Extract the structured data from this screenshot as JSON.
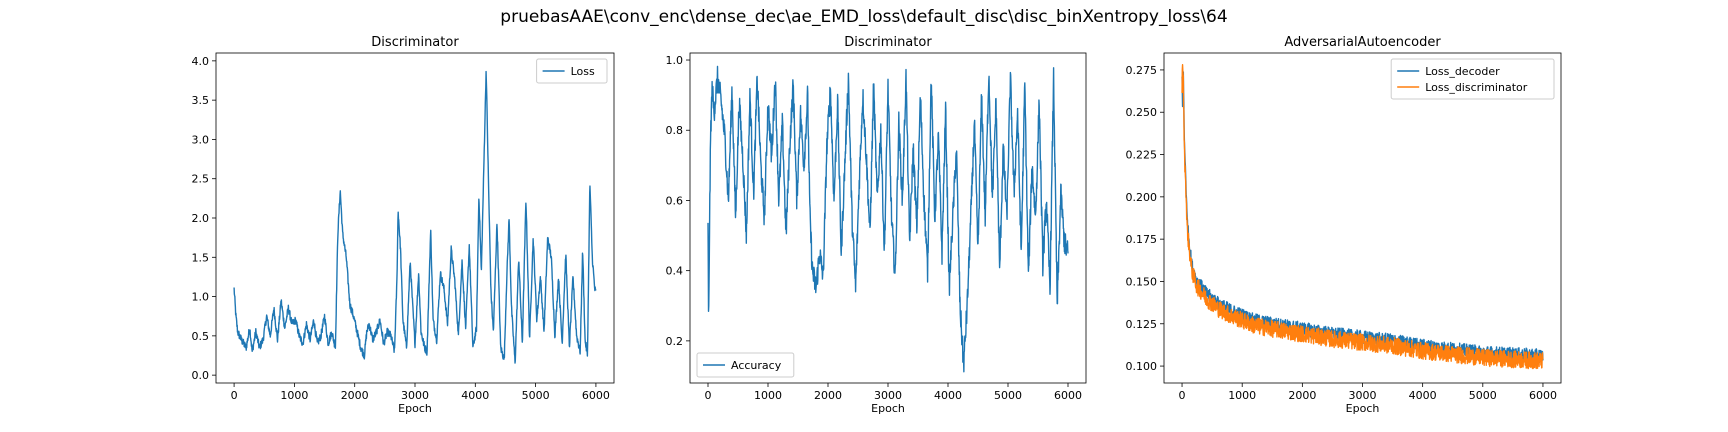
{
  "suptitle": "pruebasAAE\\conv_enc\\dense_dec\\ae_EMD_loss\\default_disc\\disc_binXentropy_loss\\64",
  "chart_data": [
    {
      "type": "line",
      "title": "Discriminator",
      "xlabel": "Epoch",
      "ylabel": "",
      "xlim": [
        -300,
        6300
      ],
      "ylim": [
        -0.1,
        4.1
      ],
      "xticks": [
        0,
        1000,
        2000,
        3000,
        4000,
        5000,
        6000
      ],
      "yticks": [
        0.0,
        0.5,
        1.0,
        1.5,
        2.0,
        2.5,
        3.0,
        3.5,
        4.0
      ],
      "ytick_labels": [
        "0.0",
        "0.5",
        "1.0",
        "1.5",
        "2.0",
        "2.5",
        "3.0",
        "3.5",
        "4.0"
      ],
      "grid": false,
      "legend_position": "upper right",
      "series": [
        {
          "name": "Loss",
          "color": "#1f77b4",
          "noise": 0.05,
          "x": [
            0,
            30,
            60,
            120,
            200,
            260,
            300,
            360,
            420,
            480,
            540,
            600,
            660,
            720,
            780,
            840,
            900,
            960,
            1020,
            1080,
            1140,
            1200,
            1260,
            1320,
            1380,
            1440,
            1500,
            1560,
            1620,
            1680,
            1720,
            1760,
            1800,
            1860,
            1920,
            1980,
            2040,
            2100,
            2160,
            2200,
            2240,
            2300,
            2360,
            2420,
            2480,
            2540,
            2600,
            2660,
            2700,
            2720,
            2760,
            2800,
            2860,
            2920,
            2960,
            3000,
            3060,
            3100,
            3160,
            3200,
            3260,
            3300,
            3360,
            3420,
            3480,
            3540,
            3600,
            3660,
            3720,
            3780,
            3840,
            3900,
            3960,
            4020,
            4060,
            4100,
            4140,
            4180,
            4220,
            4260,
            4300,
            4360,
            4420,
            4480,
            4520,
            4560,
            4600,
            4660,
            4720,
            4780,
            4840,
            4900,
            4960,
            5020,
            5080,
            5140,
            5200,
            5260,
            5320,
            5380,
            5440,
            5500,
            5560,
            5620,
            5680,
            5740,
            5780,
            5820,
            5860,
            5900,
            5940,
            5980,
            6000
          ],
          "y": [
            1.1,
            0.75,
            0.55,
            0.45,
            0.35,
            0.6,
            0.3,
            0.55,
            0.35,
            0.45,
            0.75,
            0.5,
            0.85,
            0.45,
            0.95,
            0.6,
            0.85,
            0.65,
            0.7,
            0.5,
            0.4,
            0.65,
            0.45,
            0.7,
            0.4,
            0.5,
            0.75,
            0.4,
            0.55,
            0.35,
            1.8,
            2.35,
            1.8,
            1.5,
            0.9,
            0.75,
            0.55,
            0.35,
            0.25,
            0.55,
            0.65,
            0.45,
            0.55,
            0.7,
            0.4,
            0.55,
            0.5,
            0.3,
            1.2,
            2.1,
            1.6,
            0.7,
            0.35,
            1.45,
            0.9,
            0.4,
            1.3,
            0.55,
            0.35,
            0.3,
            1.85,
            0.7,
            0.45,
            1.3,
            1.1,
            0.65,
            1.6,
            1.2,
            0.5,
            1.45,
            0.6,
            1.65,
            0.35,
            0.6,
            2.3,
            1.3,
            2.6,
            3.9,
            2.4,
            1.05,
            0.55,
            1.95,
            0.35,
            0.2,
            1.2,
            2.0,
            0.85,
            0.15,
            1.5,
            0.4,
            2.25,
            0.45,
            1.75,
            0.7,
            1.25,
            0.55,
            1.75,
            1.5,
            0.5,
            1.25,
            0.4,
            1.55,
            0.35,
            1.25,
            0.5,
            0.3,
            1.6,
            0.45,
            0.25,
            2.45,
            1.5,
            1.1,
            1.05
          ]
        }
      ]
    },
    {
      "type": "line",
      "title": "Discriminator",
      "xlabel": "Epoch",
      "ylabel": "",
      "xlim": [
        -300,
        6300
      ],
      "ylim": [
        0.08,
        1.02
      ],
      "xticks": [
        0,
        1000,
        2000,
        3000,
        4000,
        5000,
        6000
      ],
      "yticks": [
        0.2,
        0.4,
        0.6,
        0.8,
        1.0
      ],
      "ytick_labels": [
        "0.2",
        "0.4",
        "0.6",
        "0.8",
        "1.0"
      ],
      "grid": false,
      "legend_position": "lower left",
      "series": [
        {
          "name": "Accuracy",
          "color": "#1f77b4",
          "noise": 0.035,
          "x": [
            0,
            10,
            25,
            45,
            70,
            100,
            160,
            220,
            280,
            340,
            400,
            460,
            520,
            580,
            640,
            700,
            760,
            820,
            880,
            940,
            1000,
            1060,
            1120,
            1180,
            1240,
            1300,
            1360,
            1420,
            1480,
            1540,
            1600,
            1660,
            1700,
            1740,
            1800,
            1860,
            1920,
            1980,
            2040,
            2100,
            2160,
            2220,
            2280,
            2340,
            2400,
            2460,
            2520,
            2580,
            2640,
            2700,
            2760,
            2820,
            2880,
            2940,
            3000,
            3060,
            3120,
            3180,
            3240,
            3300,
            3360,
            3420,
            3480,
            3540,
            3600,
            3660,
            3720,
            3780,
            3840,
            3900,
            3960,
            4020,
            4080,
            4140,
            4200,
            4260,
            4320,
            4380,
            4440,
            4500,
            4560,
            4620,
            4680,
            4740,
            4800,
            4860,
            4920,
            4980,
            5040,
            5100,
            5160,
            5220,
            5280,
            5340,
            5400,
            5460,
            5520,
            5580,
            5640,
            5700,
            5760,
            5820,
            5880,
            5940,
            6000
          ],
          "y": [
            0.55,
            0.22,
            0.52,
            0.8,
            0.92,
            0.85,
            0.95,
            0.88,
            0.78,
            0.6,
            0.92,
            0.55,
            0.88,
            0.72,
            0.5,
            0.9,
            0.62,
            0.95,
            0.7,
            0.55,
            0.88,
            0.72,
            0.95,
            0.6,
            0.82,
            0.5,
            0.75,
            0.93,
            0.6,
            0.85,
            0.7,
            0.9,
            0.55,
            0.4,
            0.35,
            0.45,
            0.38,
            0.75,
            0.92,
            0.6,
            0.88,
            0.45,
            0.7,
            0.95,
            0.55,
            0.35,
            0.65,
            0.9,
            0.72,
            0.5,
            0.93,
            0.6,
            0.8,
            0.45,
            0.92,
            0.55,
            0.38,
            0.82,
            0.6,
            0.95,
            0.48,
            0.75,
            0.52,
            0.9,
            0.6,
            0.4,
            0.95,
            0.55,
            0.78,
            0.45,
            0.86,
            0.35,
            0.55,
            0.75,
            0.3,
            0.13,
            0.3,
            0.55,
            0.82,
            0.45,
            0.9,
            0.55,
            0.97,
            0.6,
            0.88,
            0.4,
            0.75,
            0.55,
            0.95,
            0.62,
            0.85,
            0.45,
            0.93,
            0.38,
            0.7,
            0.55,
            0.88,
            0.42,
            0.6,
            0.35,
            0.95,
            0.3,
            0.62,
            0.48,
            0.45
          ]
        }
      ]
    },
    {
      "type": "line",
      "title": "AdversarialAutoencoder",
      "xlabel": "Epoch",
      "ylabel": "",
      "xlim": [
        -300,
        6300
      ],
      "ylim": [
        0.09,
        0.285
      ],
      "xticks": [
        0,
        1000,
        2000,
        3000,
        4000,
        5000,
        6000
      ],
      "yticks": [
        0.1,
        0.125,
        0.15,
        0.175,
        0.2,
        0.225,
        0.25,
        0.275
      ],
      "ytick_labels": [
        "0.100",
        "0.125",
        "0.150",
        "0.175",
        "0.200",
        "0.225",
        "0.250",
        "0.275"
      ],
      "grid": false,
      "legend_position": "upper right",
      "series": [
        {
          "name": "Loss_decoder",
          "color": "#1f77b4",
          "noise": 0.004,
          "x": [
            0,
            10,
            20,
            40,
            60,
            80,
            100,
            130,
            160,
            200,
            250,
            300,
            400,
            500,
            600,
            800,
            1000,
            1200,
            1500,
            2000,
            2500,
            3000,
            3500,
            4000,
            4500,
            5000,
            5500,
            6000
          ],
          "y": [
            0.27,
            0.25,
            0.275,
            0.23,
            0.215,
            0.19,
            0.18,
            0.17,
            0.16,
            0.155,
            0.15,
            0.148,
            0.143,
            0.14,
            0.137,
            0.133,
            0.13,
            0.127,
            0.125,
            0.122,
            0.119,
            0.117,
            0.115,
            0.112,
            0.11,
            0.108,
            0.107,
            0.106
          ]
        },
        {
          "name": "Loss_discriminator",
          "color": "#ff7f0e",
          "noise": 0.005,
          "x": [
            0,
            10,
            20,
            40,
            60,
            80,
            100,
            130,
            160,
            200,
            250,
            300,
            400,
            500,
            600,
            800,
            1000,
            1200,
            1500,
            2000,
            2500,
            3000,
            3500,
            4000,
            4500,
            5000,
            5500,
            6000
          ],
          "y": [
            0.265,
            0.28,
            0.27,
            0.225,
            0.21,
            0.185,
            0.176,
            0.166,
            0.157,
            0.152,
            0.147,
            0.145,
            0.14,
            0.137,
            0.134,
            0.13,
            0.127,
            0.124,
            0.122,
            0.119,
            0.116,
            0.114,
            0.112,
            0.109,
            0.107,
            0.105,
            0.104,
            0.103
          ]
        }
      ]
    }
  ]
}
